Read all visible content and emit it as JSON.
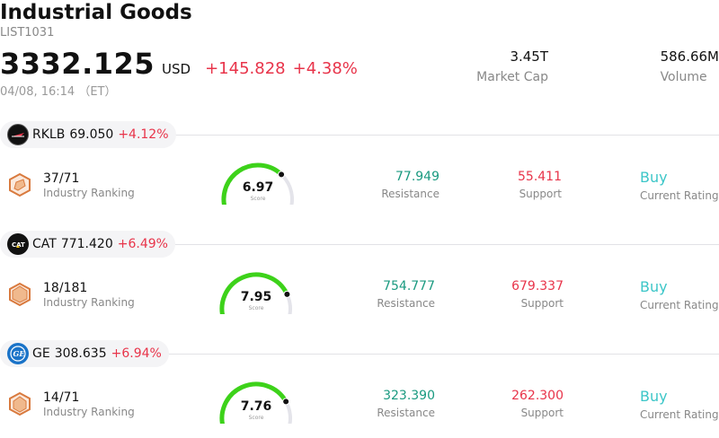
{
  "header": {
    "title": "Industrial Goods",
    "code": "LIST1031",
    "price": "3332.125",
    "currency": "USD",
    "change": "+145.828",
    "change_pct": "+4.38%",
    "timestamp": "04/08, 16:14 （ET）",
    "market_cap_value": "3.45T",
    "market_cap_label": "Market Cap",
    "volume_value": "586.66M",
    "volume_label": "Volume"
  },
  "colors": {
    "up_red": "#e8344a",
    "resistance_green": "#1a9a80",
    "rating_teal": "#3cc6c8",
    "gauge_green": "#3dd21a",
    "gauge_track": "#e4e4ea",
    "ranking_icon": "#d97a3e"
  },
  "stocks": [
    {
      "symbol": "RKLB",
      "price": "69.050",
      "change_pct": "+4.12%",
      "logo_icon": "rocket-lab-logo-icon",
      "ranking_value": "37/71",
      "ranking_label": "Industry Ranking",
      "score": "6.97",
      "score_label": "Score",
      "score_fraction": 0.697,
      "resistance_value": "77.949",
      "resistance_label": "Resistance",
      "support_value": "55.411",
      "support_label": "Support",
      "rating_value": "Buy",
      "rating_label": "Current Rating"
    },
    {
      "symbol": "CAT",
      "price": "771.420",
      "change_pct": "+6.49%",
      "logo_icon": "caterpillar-logo-icon",
      "ranking_value": "18/181",
      "ranking_label": "Industry Ranking",
      "score": "7.95",
      "score_label": "Score",
      "score_fraction": 0.795,
      "resistance_value": "754.777",
      "resistance_label": "Resistance",
      "support_value": "679.337",
      "support_label": "Support",
      "rating_value": "Buy",
      "rating_label": "Current Rating"
    },
    {
      "symbol": "GE",
      "price": "308.635",
      "change_pct": "+6.94%",
      "logo_icon": "ge-logo-icon",
      "ranking_value": "14/71",
      "ranking_label": "Industry Ranking",
      "score": "7.76",
      "score_label": "Score",
      "score_fraction": 0.776,
      "resistance_value": "323.390",
      "resistance_label": "Resistance",
      "support_value": "262.300",
      "support_label": "Support",
      "rating_value": "Buy",
      "rating_label": "Current Rating"
    }
  ]
}
